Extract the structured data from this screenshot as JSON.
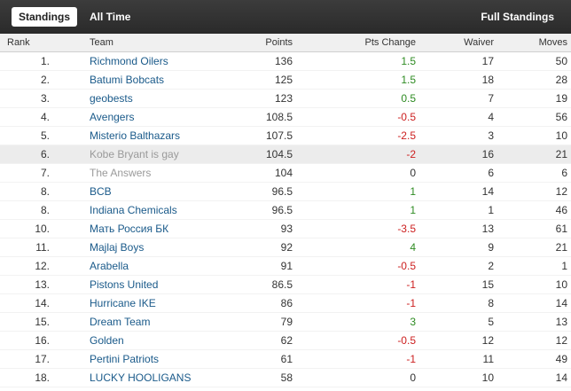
{
  "header": {
    "tabs": [
      "Standings",
      "All Time"
    ],
    "active_tab": 0,
    "full_link": "Full Standings"
  },
  "columns": {
    "rank": "Rank",
    "team": "Team",
    "points": "Points",
    "pts_change": "Pts Change",
    "waiver": "Waiver",
    "moves": "Moves"
  },
  "rows": [
    {
      "rank": "1.",
      "team": "Richmond Oilers",
      "points": "136",
      "change": "1.5",
      "waiver": "17",
      "moves": "50"
    },
    {
      "rank": "2.",
      "team": "Batumi Bobcats",
      "points": "125",
      "change": "1.5",
      "waiver": "18",
      "moves": "28"
    },
    {
      "rank": "3.",
      "team": "geobests",
      "points": "123",
      "change": "0.5",
      "waiver": "7",
      "moves": "19"
    },
    {
      "rank": "4.",
      "team": "Avengers",
      "points": "108.5",
      "change": "-0.5",
      "waiver": "4",
      "moves": "56"
    },
    {
      "rank": "5.",
      "team": "Misterio Balthazars",
      "points": "107.5",
      "change": "-2.5",
      "waiver": "3",
      "moves": "10"
    },
    {
      "rank": "6.",
      "team": "Kobe Bryant is gay",
      "points": "104.5",
      "change": "-2",
      "waiver": "16",
      "moves": "21",
      "highlight": true,
      "dim": true
    },
    {
      "rank": "7.",
      "team": "The Answers",
      "points": "104",
      "change": "0",
      "waiver": "6",
      "moves": "6",
      "dim": true
    },
    {
      "rank": "8.",
      "team": "BCB",
      "points": "96.5",
      "change": "1",
      "waiver": "14",
      "moves": "12"
    },
    {
      "rank": "8.",
      "team": "Indiana Chemicals",
      "points": "96.5",
      "change": "1",
      "waiver": "1",
      "moves": "46"
    },
    {
      "rank": "10.",
      "team": "Мать Россия БК",
      "points": "93",
      "change": "-3.5",
      "waiver": "13",
      "moves": "61"
    },
    {
      "rank": "11.",
      "team": "Majlaj Boys",
      "points": "92",
      "change": "4",
      "waiver": "9",
      "moves": "21"
    },
    {
      "rank": "12.",
      "team": "Arabella",
      "points": "91",
      "change": "-0.5",
      "waiver": "2",
      "moves": "1"
    },
    {
      "rank": "13.",
      "team": "Pistons United",
      "points": "86.5",
      "change": "-1",
      "waiver": "15",
      "moves": "10"
    },
    {
      "rank": "14.",
      "team": "Hurricane IKE",
      "points": "86",
      "change": "-1",
      "waiver": "8",
      "moves": "14"
    },
    {
      "rank": "15.",
      "team": "Dream Team",
      "points": "79",
      "change": "3",
      "waiver": "5",
      "moves": "13"
    },
    {
      "rank": "16.",
      "team": "Golden",
      "points": "62",
      "change": "-0.5",
      "waiver": "12",
      "moves": "12"
    },
    {
      "rank": "17.",
      "team": "Pertini Patriots",
      "points": "61",
      "change": "-1",
      "waiver": "11",
      "moves": "49"
    },
    {
      "rank": "18.",
      "team": "LUCKY HOOLIGANS",
      "points": "58",
      "change": "0",
      "waiver": "10",
      "moves": "14"
    }
  ],
  "colors": {
    "positive": "#2e8b22",
    "negative": "#cc1f1f",
    "team_link": "#1a5a8a",
    "team_dim": "#9a9a9a",
    "header_bg": "#333333",
    "highlight_row": "#ececec"
  }
}
